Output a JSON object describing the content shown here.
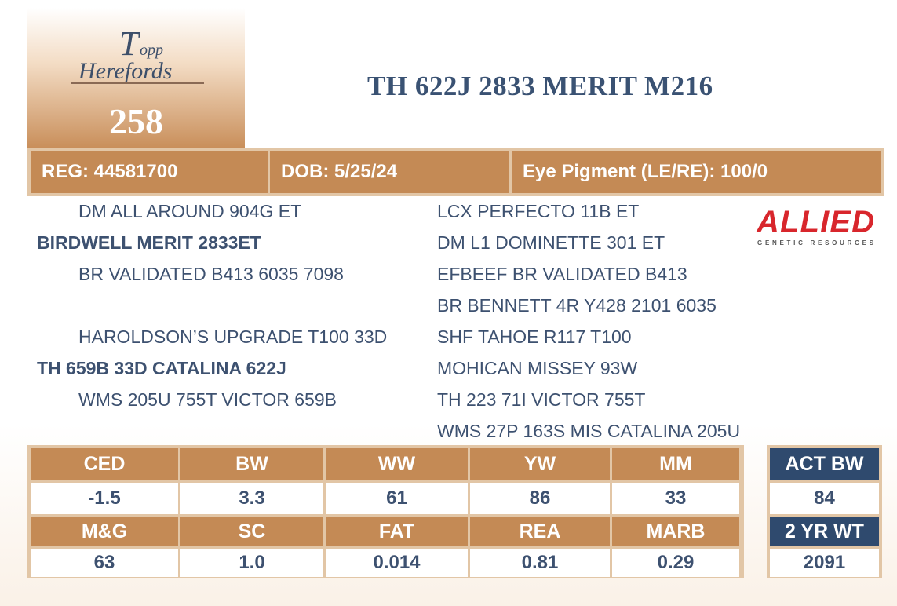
{
  "logo_text": "Topp Herefords",
  "lot_number": "258",
  "title": "TH 622J 2833 MERIT M216",
  "info": {
    "reg": "REG: 44581700",
    "dob": "DOB: 5/25/24",
    "eye": "Eye Pigment (LE/RE): 100/0"
  },
  "sponsor_logo": {
    "text": "ALLIED",
    "subtext": "GENETIC RESOURCES",
    "color": "#d8262c"
  },
  "pedigree": {
    "left": [
      {
        "text": "DM ALL AROUND 904G ET",
        "bold": false
      },
      {
        "text": "BIRDWELL MERIT 2833ET",
        "bold": true
      },
      {
        "text": "BR VALIDATED B413 6035 7098",
        "bold": false
      },
      {
        "text": "HAROLDSON’S UPGRADE T100 33D",
        "bold": false
      },
      {
        "text": "TH 659B 33D CATALINA 622J",
        "bold": true
      },
      {
        "text": "WMS 205U 755T VICTOR 659B",
        "bold": false
      }
    ],
    "right": [
      "LCX PERFECTO 11B ET",
      "DM L1 DOMINETTE 301 ET",
      "EFBEEF BR VALIDATED B413",
      "BR BENNETT 4R Y428 2101 6035",
      "SHF TAHOE R117 T100",
      "MOHICAN MISSEY 93W",
      "TH 223 71I VICTOR 755T",
      "WMS 27P 163S MIS CATALINA 205U"
    ]
  },
  "epds": {
    "row1_headers": [
      "CED",
      "BW",
      "WW",
      "YW",
      "MM"
    ],
    "row1_values": [
      "-1.5",
      "3.3",
      "61",
      "86",
      "33"
    ],
    "row2_headers": [
      "M&G",
      "SC",
      "FAT",
      "REA",
      "MARB"
    ],
    "row2_values": [
      "63",
      "1.0",
      "0.014",
      "0.81",
      "0.29"
    ]
  },
  "actuals": {
    "act_bw_label": "ACT BW",
    "act_bw": "84",
    "yr2_label": "2 YR WT",
    "yr2": "2091"
  },
  "colors": {
    "tan": "#c48a55",
    "border": "#e2c6a6",
    "navy": "#2f4a6e",
    "text": "#3d5170"
  }
}
